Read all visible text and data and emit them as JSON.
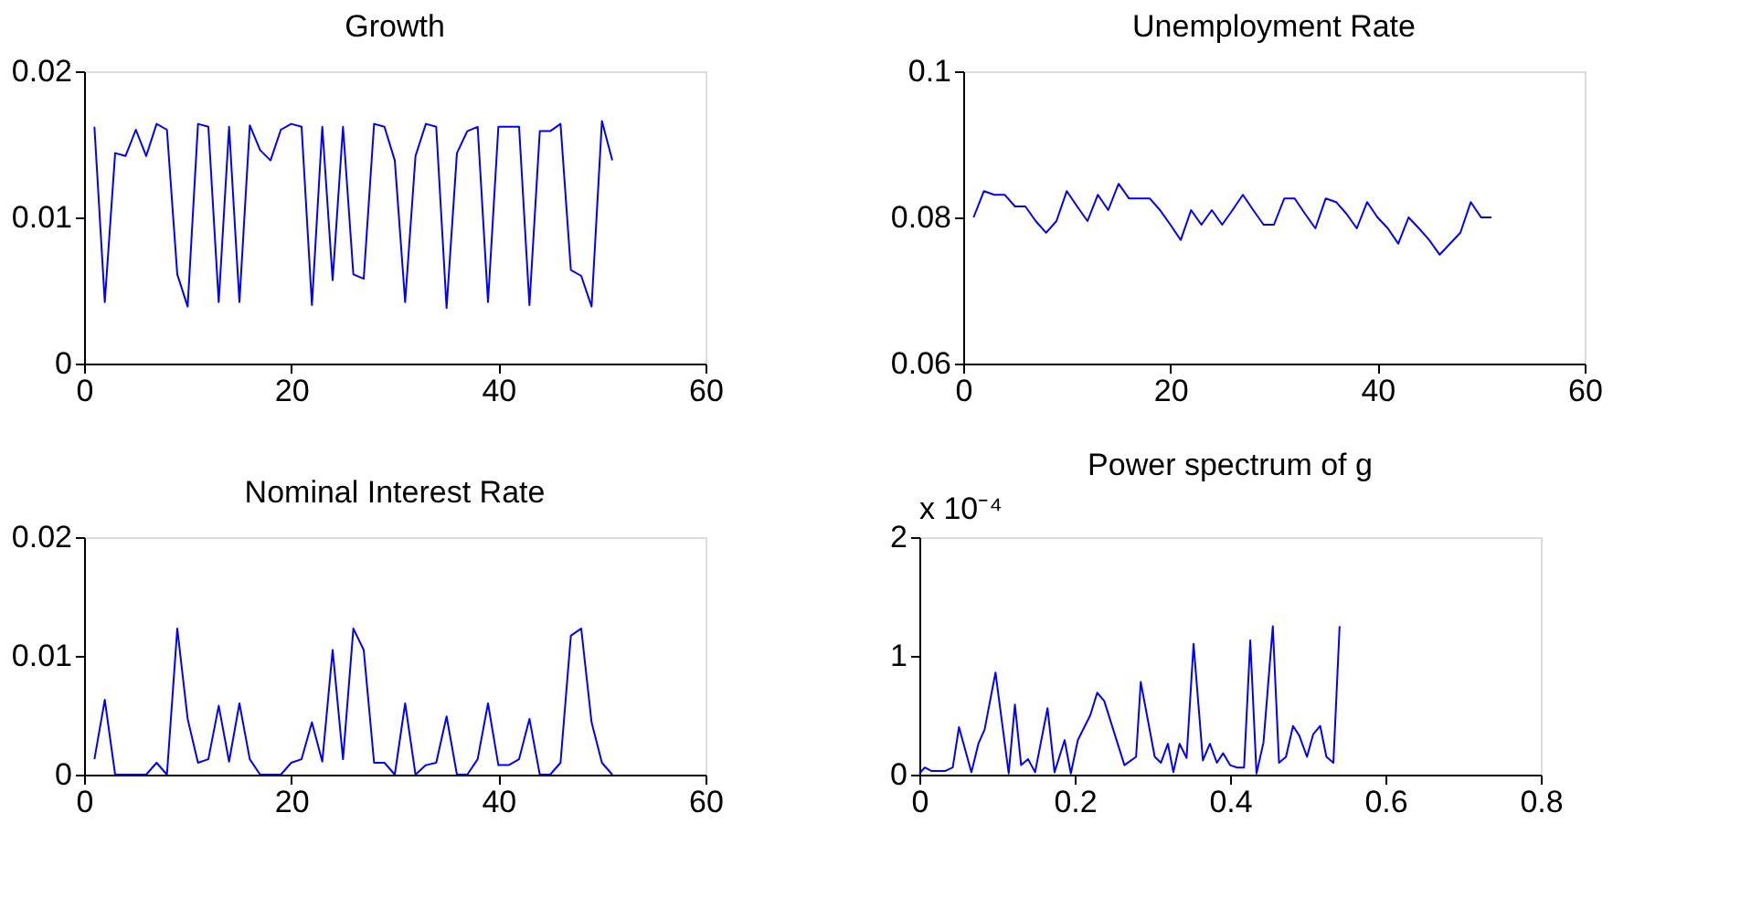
{
  "chart_data": [
    {
      "type": "line",
      "title": "Growth",
      "color": "#0000ff",
      "xlim": [
        0,
        60
      ],
      "xticks": [
        0,
        20,
        40,
        60
      ],
      "ylim": [
        0,
        0.02
      ],
      "yticks": [
        0,
        0.01,
        0.02
      ],
      "x": [
        1,
        2,
        3,
        4,
        5,
        6,
        7,
        8,
        9,
        10,
        11,
        12,
        13,
        14,
        15,
        16,
        17,
        18,
        19,
        20,
        21,
        22,
        23,
        24,
        25,
        26,
        27,
        28,
        29,
        30,
        31,
        32,
        33,
        34,
        35,
        36,
        37,
        38,
        39,
        40,
        41,
        42,
        43,
        44,
        45,
        46,
        47,
        48,
        49,
        50,
        51
      ],
      "values": [
        0.0162,
        0.0042,
        0.0144,
        0.0142,
        0.016,
        0.0142,
        0.0164,
        0.016,
        0.0061,
        0.0039,
        0.0164,
        0.0162,
        0.0042,
        0.0162,
        0.0042,
        0.0163,
        0.0146,
        0.0139,
        0.016,
        0.0164,
        0.0162,
        0.004,
        0.0162,
        0.0057,
        0.0162,
        0.0061,
        0.0058,
        0.0164,
        0.0162,
        0.0139,
        0.0042,
        0.0142,
        0.0164,
        0.0162,
        0.0038,
        0.0144,
        0.0159,
        0.0162,
        0.0042,
        0.0162,
        0.0162,
        0.0162,
        0.004,
        0.0159,
        0.0159,
        0.0164,
        0.0064,
        0.006,
        0.0039,
        0.0166,
        0.0139
      ]
    },
    {
      "type": "line",
      "title": "Unemployment Rate",
      "color": "#0000ff",
      "xlim": [
        0,
        60
      ],
      "xticks": [
        0,
        20,
        40,
        60
      ],
      "ylim": [
        0.06,
        0.1
      ],
      "yticks": [
        0.06,
        0.08,
        0.1
      ],
      "x": [
        1,
        2,
        3,
        4,
        5,
        6,
        7,
        8,
        9,
        10,
        11,
        12,
        13,
        14,
        15,
        16,
        17,
        18,
        19,
        20,
        21,
        22,
        23,
        24,
        25,
        26,
        27,
        28,
        29,
        30,
        31,
        32,
        33,
        34,
        35,
        36,
        37,
        38,
        39,
        40,
        41,
        42,
        43,
        44,
        45,
        46,
        47,
        48,
        49,
        50,
        51
      ],
      "values": [
        0.08,
        0.0836,
        0.0831,
        0.0831,
        0.0815,
        0.0815,
        0.0795,
        0.0779,
        0.0795,
        0.0836,
        0.0815,
        0.0795,
        0.0831,
        0.081,
        0.0846,
        0.0826,
        0.0826,
        0.0826,
        0.081,
        0.079,
        0.0769,
        0.081,
        0.079,
        0.081,
        0.079,
        0.081,
        0.0831,
        0.081,
        0.079,
        0.079,
        0.0826,
        0.0826,
        0.0805,
        0.0785,
        0.0826,
        0.0821,
        0.0805,
        0.0785,
        0.0821,
        0.08,
        0.0785,
        0.0764,
        0.08,
        0.0785,
        0.0769,
        0.0749,
        0.0764,
        0.0779,
        0.0821,
        0.08,
        0.08
      ]
    },
    {
      "type": "line",
      "title": "Nominal Interest Rate",
      "color": "#0000ff",
      "xlim": [
        0,
        60
      ],
      "xticks": [
        0,
        20,
        40,
        60
      ],
      "ylim": [
        0,
        0.02
      ],
      "yticks": [
        0,
        0.01,
        0.02
      ],
      "x": [
        1,
        2,
        3,
        4,
        5,
        6,
        7,
        8,
        9,
        10,
        11,
        12,
        13,
        14,
        15,
        16,
        17,
        18,
        19,
        20,
        21,
        22,
        23,
        24,
        25,
        26,
        27,
        28,
        29,
        30,
        31,
        32,
        33,
        34,
        35,
        36,
        37,
        38,
        39,
        40,
        41,
        42,
        43,
        44,
        45,
        46,
        47,
        48,
        49,
        50,
        51
      ],
      "values": [
        0.0013,
        0.0063,
        0,
        0,
        0,
        0,
        0.001,
        0,
        0.0123,
        0.0047,
        0.001,
        0.0013,
        0.0058,
        0.0011,
        0.006,
        0.0013,
        0,
        0,
        0,
        0.001,
        0.0013,
        0.0044,
        0.0011,
        0.0105,
        0.0013,
        0.0123,
        0.0105,
        0.001,
        0.001,
        0,
        0.006,
        0,
        0.0008,
        0.001,
        0.0049,
        0,
        0,
        0.0013,
        0.006,
        0.0008,
        0.0008,
        0.0013,
        0.0047,
        0,
        0,
        0.001,
        0.0117,
        0.0123,
        0.0044,
        0.001,
        0
      ]
    },
    {
      "type": "line",
      "title": "Power spectrum of g",
      "annotations": [
        "x 10⁻⁴"
      ],
      "color": "#0000ff",
      "xlim": [
        0,
        0.8
      ],
      "xticks": [
        0,
        0.2,
        0.4,
        0.6,
        0.8
      ],
      "ylim": [
        0,
        2
      ],
      "yticks": [
        0,
        1,
        2
      ],
      "x": [
        0,
        0.007,
        0.016,
        0.033,
        0.043,
        0.051,
        0.067,
        0.076,
        0.084,
        0.098,
        0.115,
        0.123,
        0.131,
        0.14,
        0.149,
        0.165,
        0.174,
        0.187,
        0.195,
        0.204,
        0.22,
        0.229,
        0.238,
        0.264,
        0.279,
        0.285,
        0.303,
        0.311,
        0.32,
        0.327,
        0.335,
        0.344,
        0.353,
        0.365,
        0.374,
        0.383,
        0.391,
        0.4,
        0.409,
        0.418,
        0.426,
        0.434,
        0.443,
        0.455,
        0.463,
        0.472,
        0.481,
        0.489,
        0.499,
        0.507,
        0.516,
        0.524,
        0.533,
        0.541
      ],
      "values": [
        0.01,
        0.06,
        0.03,
        0.03,
        0.06,
        0.4,
        0.02,
        0.26,
        0.38,
        0.86,
        0.01,
        0.59,
        0.08,
        0.13,
        0.02,
        0.56,
        0.02,
        0.29,
        0.01,
        0.29,
        0.5,
        0.69,
        0.62,
        0.08,
        0.15,
        0.78,
        0.15,
        0.1,
        0.26,
        0.02,
        0.26,
        0.14,
        1.1,
        0.12,
        0.26,
        0.1,
        0.18,
        0.08,
        0.06,
        0.06,
        1.13,
        0.01,
        0.27,
        1.25,
        0.1,
        0.15,
        0.41,
        0.33,
        0.15,
        0.34,
        0.41,
        0.15,
        0.1,
        1.25
      ]
    }
  ]
}
